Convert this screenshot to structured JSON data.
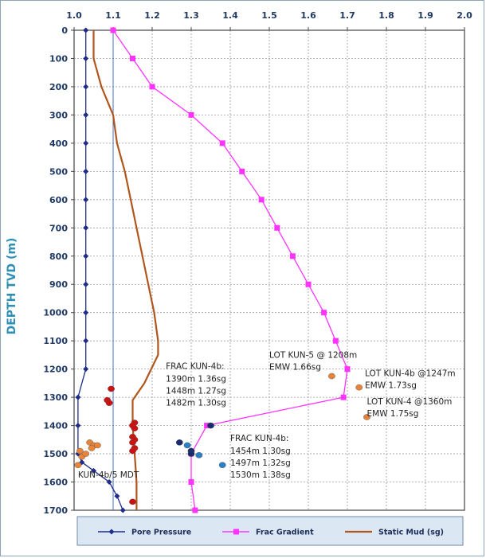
{
  "chart_data": {
    "type": "line",
    "x_axis_position": "top",
    "y_axis_inverted": true,
    "xlim": [
      1.0,
      2.0
    ],
    "ylim": [
      0,
      1700
    ],
    "x_ticks": [
      "1.0",
      "1.1",
      "1.2",
      "1.3",
      "1.4",
      "1.5",
      "1.6",
      "1.7",
      "1.8",
      "1.9",
      "2.0"
    ],
    "y_ticks": [
      "0",
      "100",
      "200",
      "300",
      "400",
      "500",
      "600",
      "700",
      "800",
      "900",
      "1000",
      "1100",
      "1200",
      "1300",
      "1400",
      "1500",
      "1600",
      "1700"
    ],
    "ylabel": "DEPTH TVD (m)",
    "xlabel": "",
    "grid": true,
    "legend_placement": "bottom",
    "series": [
      {
        "name": "Pore Pressure",
        "color": "#1f2d8a",
        "marker": "diamond",
        "points": [
          [
            1.03,
            0
          ],
          [
            1.03,
            100
          ],
          [
            1.03,
            200
          ],
          [
            1.03,
            300
          ],
          [
            1.03,
            400
          ],
          [
            1.03,
            500
          ],
          [
            1.03,
            600
          ],
          [
            1.03,
            700
          ],
          [
            1.03,
            800
          ],
          [
            1.03,
            900
          ],
          [
            1.03,
            1000
          ],
          [
            1.03,
            1100
          ],
          [
            1.03,
            1200
          ],
          [
            1.01,
            1300
          ],
          [
            1.01,
            1400
          ],
          [
            1.01,
            1500
          ],
          [
            1.02,
            1530
          ],
          [
            1.05,
            1560
          ],
          [
            1.09,
            1600
          ],
          [
            1.11,
            1650
          ],
          [
            1.125,
            1700
          ]
        ]
      },
      {
        "name": "Frac Gradient",
        "color": "#ff33ff",
        "marker": "square",
        "points": [
          [
            1.1,
            0
          ],
          [
            1.15,
            100
          ],
          [
            1.2,
            200
          ],
          [
            1.3,
            300
          ],
          [
            1.38,
            400
          ],
          [
            1.43,
            500
          ],
          [
            1.48,
            600
          ],
          [
            1.52,
            700
          ],
          [
            1.56,
            800
          ],
          [
            1.6,
            900
          ],
          [
            1.64,
            1000
          ],
          [
            1.67,
            1100
          ],
          [
            1.7,
            1200
          ],
          [
            1.69,
            1300
          ],
          [
            1.34,
            1400
          ],
          [
            1.3,
            1500
          ],
          [
            1.3,
            1600
          ],
          [
            1.31,
            1700
          ]
        ]
      },
      {
        "name": "Static Mud (sg)",
        "color": "#b0561c",
        "marker": "none",
        "points": [
          [
            1.05,
            0
          ],
          [
            1.05,
            100
          ],
          [
            1.07,
            200
          ],
          [
            1.1,
            300
          ],
          [
            1.11,
            400
          ],
          [
            1.13,
            500
          ],
          [
            1.145,
            600
          ],
          [
            1.16,
            700
          ],
          [
            1.175,
            800
          ],
          [
            1.19,
            900
          ],
          [
            1.205,
            1000
          ],
          [
            1.215,
            1100
          ],
          [
            1.215,
            1150
          ],
          [
            1.18,
            1250
          ],
          [
            1.15,
            1310
          ],
          [
            1.15,
            1400
          ],
          [
            1.155,
            1500
          ],
          [
            1.16,
            1600
          ],
          [
            1.16,
            1700
          ]
        ]
      }
    ],
    "reference_lines": [
      {
        "orientation": "vertical",
        "x": 1.1,
        "color": "#4472c4"
      }
    ],
    "point_groups": [
      {
        "color": "#cc1111",
        "points": [
          [
            1.095,
            1270
          ],
          [
            1.085,
            1310
          ],
          [
            1.09,
            1320
          ],
          [
            1.155,
            1390
          ],
          [
            1.15,
            1400
          ],
          [
            1.155,
            1410
          ],
          [
            1.15,
            1440
          ],
          [
            1.155,
            1450
          ],
          [
            1.15,
            1460
          ],
          [
            1.155,
            1480
          ],
          [
            1.15,
            1490
          ],
          [
            1.15,
            1670
          ]
        ]
      },
      {
        "color": "#e8843a",
        "points": [
          [
            1.04,
            1460
          ],
          [
            1.05,
            1470
          ],
          [
            1.045,
            1480
          ],
          [
            1.06,
            1470
          ],
          [
            1.015,
            1490
          ],
          [
            1.02,
            1510
          ],
          [
            1.03,
            1500
          ],
          [
            1.01,
            1540
          ],
          [
            1.66,
            1225
          ],
          [
            1.73,
            1265
          ],
          [
            1.75,
            1370
          ]
        ]
      },
      {
        "color": "#1a2a6e",
        "points": [
          [
            1.35,
            1400
          ],
          [
            1.27,
            1460
          ],
          [
            1.3,
            1490
          ],
          [
            1.3,
            1500
          ]
        ]
      },
      {
        "color": "#2a7fc8",
        "points": [
          [
            1.29,
            1470
          ],
          [
            1.32,
            1505
          ],
          [
            1.38,
            1540
          ]
        ]
      }
    ],
    "annotations": [
      {
        "x": 1.5,
        "y": 1160,
        "lines": [
          "LOT KUN-5 @ 1208m",
          "EMW 1.66sg"
        ]
      },
      {
        "x": 1.745,
        "y": 1225,
        "lines": [
          "LOT KUN-4b @1247m",
          "EMW 1.73sg"
        ]
      },
      {
        "x": 1.75,
        "y": 1325,
        "lines": [
          "LOT KUN-4 @1360m",
          "EMW 1.75sg"
        ]
      },
      {
        "x": 1.235,
        "y": 1200,
        "lines": [
          "FRAC KUN-4b:"
        ]
      },
      {
        "x": 1.235,
        "y": 1245,
        "lines": [
          "1390m  1.36sg",
          "1448m  1.27sg",
          "1482m  1.30sg"
        ]
      },
      {
        "x": 1.4,
        "y": 1455,
        "lines": [
          "FRAC KUN-4b:"
        ]
      },
      {
        "x": 1.4,
        "y": 1500,
        "lines": [
          "1454m  1.30sg",
          "1497m  1.32sg",
          "1530m  1.38sg"
        ]
      },
      {
        "x": 1.01,
        "y": 1585,
        "lines": [
          "KUN-4b/5  MDT"
        ]
      }
    ]
  }
}
